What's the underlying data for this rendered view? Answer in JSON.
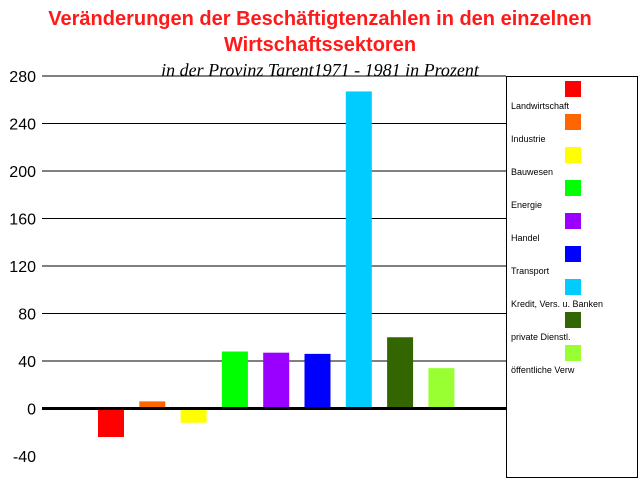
{
  "chart_data": {
    "type": "bar",
    "title_line1": "Veränderungen der Beschäftigtenzahlen  in den einzelnen",
    "title_line2": "Wirtschaftssektoren",
    "subtitle": "in der Provinz Tarent1971 - 1981 in Prozent",
    "xlabel": "",
    "ylabel": "",
    "ylim": [
      -40,
      280
    ],
    "yticks": [
      "280",
      "240",
      "200",
      "160",
      "120",
      "80",
      "40",
      "0",
      "-40"
    ],
    "grid": true,
    "legend_position": "right",
    "series": [
      {
        "name": "Landwirtschaft",
        "value": -24,
        "color": "#ff0000"
      },
      {
        "name": "Industrie",
        "value": 6,
        "color": "#ff6600"
      },
      {
        "name": "Bauwesen",
        "value": -12,
        "color": "#ffff00"
      },
      {
        "name": "Energie",
        "value": 48,
        "color": "#00ff00"
      },
      {
        "name": "Handel",
        "value": 47,
        "color": "#9900ff"
      },
      {
        "name": "Transport",
        "value": 46,
        "color": "#0000ff"
      },
      {
        "name": "Kredit, Vers. u. Banken",
        "value": 267,
        "color": "#00ccff"
      },
      {
        "name": "private Dienstl.",
        "value": 60,
        "color": "#336600"
      },
      {
        "name": "öffentliche Verw",
        "value": 34,
        "color": "#99ff33"
      }
    ]
  }
}
